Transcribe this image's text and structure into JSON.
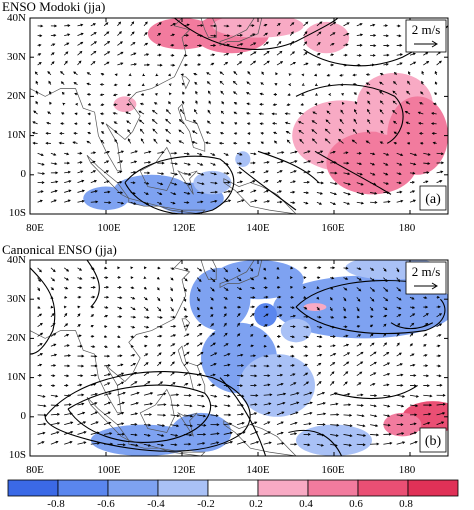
{
  "panels": [
    {
      "id": "a",
      "title": "ENSO Modoki (jja)",
      "tag": "(a)",
      "reference_vector": "2 m/s",
      "lat_labels": [
        "40N",
        "30N",
        "20N",
        "10N",
        "0",
        "10S"
      ],
      "lon_labels": [
        "80E",
        "100E",
        "120E",
        "140E",
        "160E",
        "180"
      ],
      "blobs": [
        {
          "lon": 120,
          "lat": 36,
          "rx": 9,
          "ry": 4,
          "value": 0.5
        },
        {
          "lon": 133,
          "lat": 36,
          "rx": 10,
          "ry": 5,
          "value": 0.4
        },
        {
          "lon": 140,
          "lat": 38,
          "rx": 12,
          "ry": 3,
          "value": 0.3
        },
        {
          "lon": 158,
          "lat": 35,
          "rx": 6,
          "ry": 4,
          "value": 0.3
        },
        {
          "lon": 105,
          "lat": 18,
          "rx": 3,
          "ry": 2,
          "value": 0.3
        },
        {
          "lon": 162,
          "lat": 10,
          "rx": 13,
          "ry": 9,
          "value": 0.35
        },
        {
          "lon": 170,
          "lat": 3,
          "rx": 12,
          "ry": 8,
          "value": 0.4
        },
        {
          "lon": 176,
          "lat": 18,
          "rx": 10,
          "ry": 8,
          "value": 0.3
        },
        {
          "lon": 182,
          "lat": 10,
          "rx": 8,
          "ry": 10,
          "value": 0.4
        },
        {
          "lon": 100,
          "lat": -6,
          "rx": 6,
          "ry": 3,
          "value": -0.4
        },
        {
          "lon": 112,
          "lat": -4,
          "rx": 10,
          "ry": 4,
          "value": -0.5
        },
        {
          "lon": 122,
          "lat": -6,
          "rx": 9,
          "ry": 4,
          "value": -0.4
        },
        {
          "lon": 128,
          "lat": -2,
          "rx": 5,
          "ry": 3,
          "value": -0.3
        },
        {
          "lon": 136,
          "lat": 4,
          "rx": 2,
          "ry": 2,
          "value": -0.3
        }
      ],
      "contours": [
        "M118,40 C128,32 140,30 150,34 C156,37 160,39 161,40",
        "M152,32 C158,28 168,26 178,30 C184,33 188,36 190,38",
        "M150,20 C158,24 168,24 176,20 C180,16 178,10 174,8",
        "M105,-2 C110,4 122,6 130,4 C136,0 134,-6 128,-9 C118,-12 108,-8 105,-2",
        "M140,6 C146,4 152,2 156,-2",
        "M155,6 C162,2 170,-2 175,-5",
        "M135,2 C140,-2 146,-6 150,-9"
      ],
      "wind_regions": [
        {
          "lat_min": 28,
          "lat_max": 40,
          "lon_min": 80,
          "lon_max": 190,
          "u": 0.7,
          "v": 0.3
        },
        {
          "lat_min": 18,
          "lat_max": 28,
          "lon_min": 80,
          "lon_max": 190,
          "u": -0.4,
          "v": 0.2
        },
        {
          "lat_min": 6,
          "lat_max": 18,
          "lon_min": 80,
          "lon_max": 190,
          "u": -0.6,
          "v": 0.4
        },
        {
          "lat_min": -10,
          "lat_max": 6,
          "lon_min": 80,
          "lon_max": 190,
          "u": 0.9,
          "v": 0.0
        }
      ]
    },
    {
      "id": "b",
      "title": "Canonical ENSO (jja)",
      "tag": "(b)",
      "reference_vector": "2 m/s",
      "lat_labels": [
        "40N",
        "30N",
        "20N",
        "10N",
        "0",
        "10S"
      ],
      "lon_labels": [
        "80E",
        "100E",
        "120E",
        "140E",
        "160E",
        "180"
      ],
      "blobs": [
        {
          "lon": 130,
          "lat": 30,
          "rx": 8,
          "ry": 8,
          "value": -0.4
        },
        {
          "lon": 140,
          "lat": 35,
          "rx": 12,
          "ry": 5,
          "value": -0.4
        },
        {
          "lon": 168,
          "lat": 28,
          "rx": 24,
          "ry": 8,
          "value": -0.4
        },
        {
          "lon": 175,
          "lat": 38,
          "rx": 12,
          "ry": 3,
          "value": -0.3
        },
        {
          "lon": 135,
          "lat": 15,
          "rx": 10,
          "ry": 9,
          "value": -0.4
        },
        {
          "lon": 145,
          "lat": 8,
          "rx": 10,
          "ry": 8,
          "value": -0.3
        },
        {
          "lon": 110,
          "lat": -6,
          "rx": 14,
          "ry": 4,
          "value": -0.4
        },
        {
          "lon": 125,
          "lat": -4,
          "rx": 8,
          "ry": 5,
          "value": -0.5
        },
        {
          "lon": 160,
          "lat": -6,
          "rx": 10,
          "ry": 4,
          "value": -0.35
        },
        {
          "lon": 142,
          "lat": 26,
          "rx": 3,
          "ry": 3,
          "value": -0.6
        },
        {
          "lon": 150,
          "lat": 22,
          "rx": 4,
          "ry": 3,
          "value": -0.3
        },
        {
          "lon": 186,
          "lat": 0,
          "rx": 8,
          "ry": 4,
          "value": 0.6
        },
        {
          "lon": 178,
          "lat": -2,
          "rx": 5,
          "ry": 3,
          "value": 0.4
        },
        {
          "lon": 155,
          "lat": 28,
          "rx": 3,
          "ry": 1,
          "value": 0.3
        }
      ],
      "contours": [
        "M80,38 C84,34 88,30 86,22 C84,18 82,16 80,16",
        "M95,40 C98,36 100,32 96,28",
        "M150,28 C156,22 170,20 184,22 C190,24 190,28 188,30",
        "M150,28 C156,34 170,36 184,34",
        "M84,0 C92,10 112,14 128,10 C138,6 140,0 136,-4 C128,-10 112,-10 96,-6 C88,-4 84,-2 84,0",
        "M90,2 C100,8 116,10 126,6 C130,2 126,-4 116,-6 C104,-8 94,-4 90,2",
        "M130,10 C136,4 140,-4 142,-10",
        "M148,-4 C156,-2 160,-6 162,-10",
        "M160,6 C168,4 176,4 182,8",
        "M175,24 C178,22 182,22 186,24"
      ],
      "wind_regions": [
        {
          "lat_min": 28,
          "lat_max": 40,
          "lon_min": 80,
          "lon_max": 190,
          "u": 0.5,
          "v": -0.3
        },
        {
          "lat_min": 16,
          "lat_max": 28,
          "lon_min": 80,
          "lon_max": 190,
          "u": 0.6,
          "v": 0.2
        },
        {
          "lat_min": 6,
          "lat_max": 16,
          "lon_min": 80,
          "lon_max": 190,
          "u": 0.8,
          "v": 0.3
        },
        {
          "lat_min": -10,
          "lat_max": 6,
          "lon_min": 80,
          "lon_max": 190,
          "u": 1.2,
          "v": 0.1
        }
      ]
    }
  ],
  "colorbar": {
    "ticks": [
      "-0.8",
      "-0.6",
      "-0.4",
      "-0.2",
      "0.2",
      "0.4",
      "0.6",
      "0.8"
    ],
    "colors": [
      "#3b69e6",
      "#5a86ee",
      "#7ea2f1",
      "#a9c1f6",
      "#ffffff",
      "#f8aac4",
      "#f27b9e",
      "#ea4f74",
      "#e03157"
    ]
  },
  "map": {
    "lon_min": 80,
    "lon_max": 190,
    "lat_min": -10,
    "lat_max": 40
  },
  "style": {
    "land_line": "#555555",
    "contour": "#000000",
    "arrow": "#000000"
  }
}
